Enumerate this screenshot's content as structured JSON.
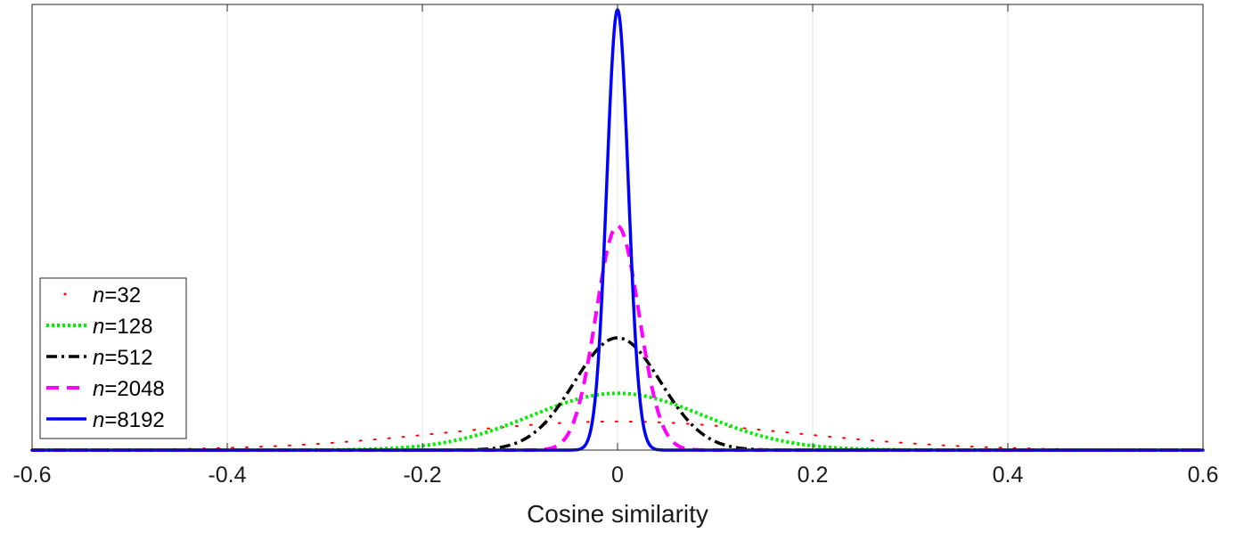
{
  "chart_data": {
    "type": "line",
    "title": "",
    "xlabel": "Cosine similarity",
    "ylabel": "",
    "xlim": [
      -0.6,
      0.6
    ],
    "xticks": [
      -0.6,
      -0.4,
      -0.2,
      0,
      0.2,
      0.4,
      0.6
    ],
    "xtick_labels": [
      "-0.6",
      "-0.4",
      "-0.2",
      "0",
      "0.2",
      "0.4",
      "0.6"
    ],
    "y_ticks_shown": false,
    "grid": "vertical",
    "legend_position": "bottom-left",
    "legend_var": "n",
    "series": [
      {
        "name": "=32",
        "n": 32,
        "color": "#ff0000",
        "style": "dotted-sparse",
        "peak_level": 0.065
      },
      {
        "name": "=128",
        "n": 128,
        "color": "#00ee00",
        "style": "dotted",
        "peak_level": 0.129
      },
      {
        "name": "=512",
        "n": 512,
        "color": "#000000",
        "style": "dash-dot",
        "peak_level": 0.255
      },
      {
        "name": "=2048",
        "n": 2048,
        "color": "#ff00ff",
        "style": "dashed",
        "peak_level": 0.509
      },
      {
        "name": "=8192",
        "n": 8192,
        "color": "#0000ff",
        "style": "solid",
        "peak_level": 1.0
      }
    ]
  }
}
